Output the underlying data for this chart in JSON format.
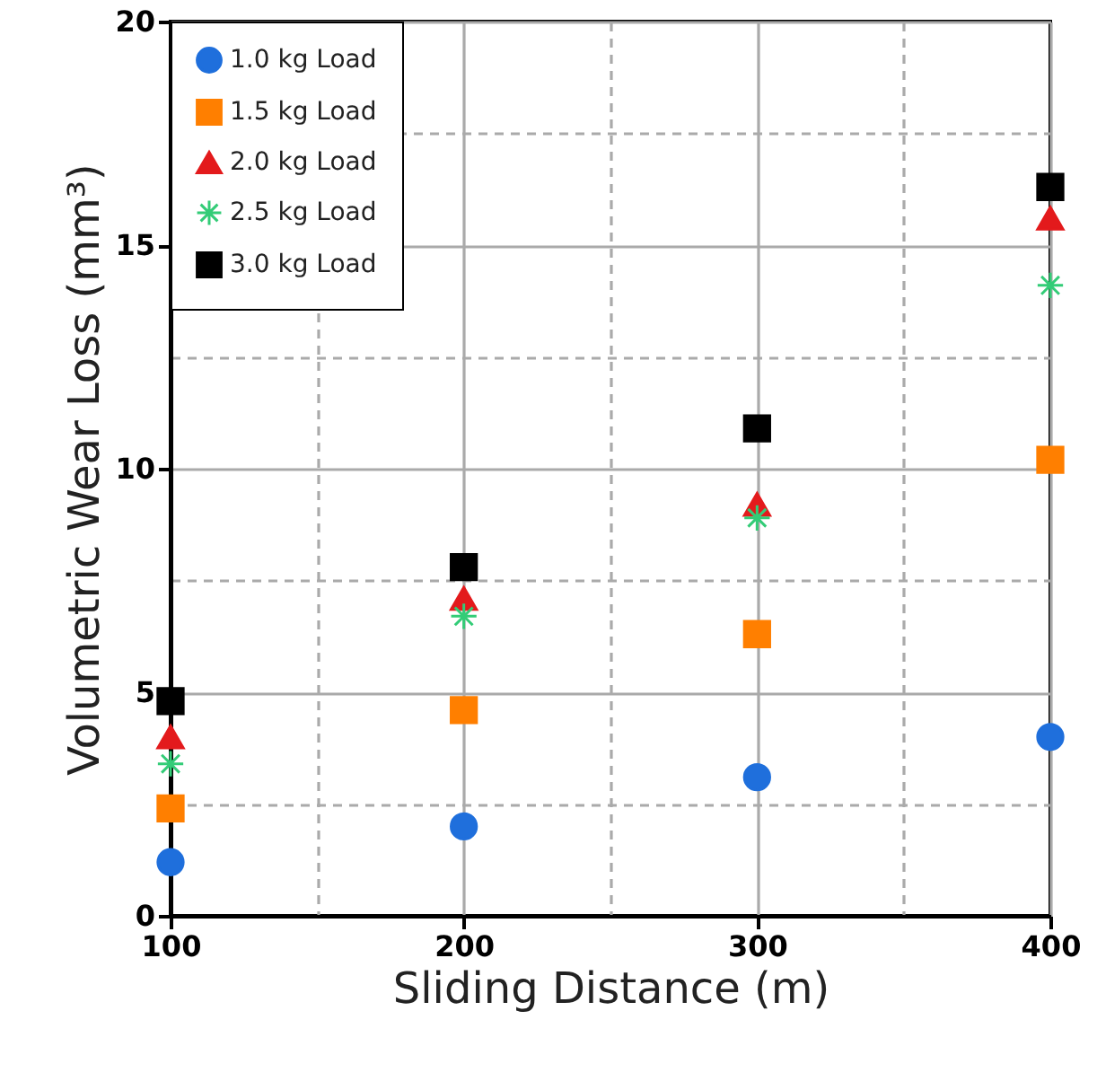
{
  "chart_data": {
    "type": "scatter",
    "xlabel": "Sliding Distance (m)",
    "ylabel": "Volumetric Wear Loss (mm³)",
    "x": [
      100,
      200,
      300,
      400
    ],
    "series": [
      {
        "name": "1.0 kg Load",
        "color": "#1f6fdc",
        "marker": "circle",
        "values": [
          1.2,
          2.0,
          3.1,
          4.0
        ]
      },
      {
        "name": "1.5 kg Load",
        "color": "#ff7f00",
        "marker": "square",
        "values": [
          2.4,
          4.6,
          6.3,
          10.2
        ]
      },
      {
        "name": "2.0 kg Load",
        "color": "#e31a1c",
        "marker": "triangle",
        "values": [
          4.0,
          7.1,
          9.2,
          15.6
        ]
      },
      {
        "name": "2.5 kg Load",
        "color": "#33cc77",
        "marker": "cross",
        "values": [
          3.4,
          6.7,
          8.9,
          14.1
        ]
      },
      {
        "name": "3.0 kg Load",
        "color": "#000000",
        "marker": "square",
        "values": [
          4.8,
          7.8,
          10.9,
          16.3
        ]
      }
    ],
    "xlim": [
      100,
      400
    ],
    "ylim": [
      0,
      20
    ],
    "xticks": [
      100,
      {
        "value": 150,
        "label": null
      },
      200,
      {
        "value": 250,
        "label": null
      },
      300,
      {
        "value": 350,
        "label": null
      },
      400
    ],
    "yticks": [
      0,
      {
        "value": 2.5,
        "label": null
      },
      5,
      {
        "value": 7.5,
        "label": null
      },
      10,
      {
        "value": 12.5,
        "label": null
      },
      15,
      {
        "value": 17.5,
        "label": null
      },
      20
    ],
    "grid": true,
    "legend": "top left"
  }
}
